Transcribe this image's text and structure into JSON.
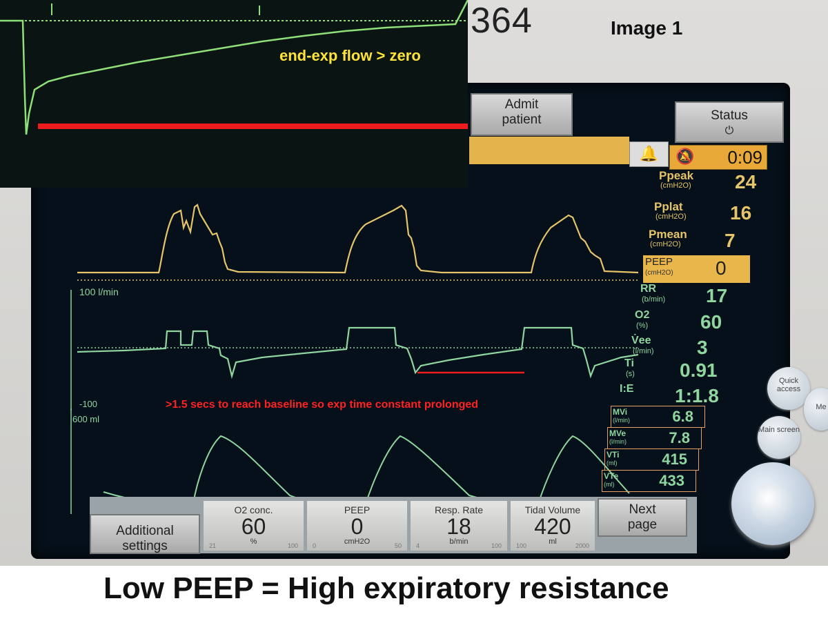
{
  "device_number": "364",
  "image_label": "Image 1",
  "inset": {
    "note": "end-exp flow > zero"
  },
  "header": {
    "admit_line1": "Admit",
    "admit_line2": "patient",
    "status_label": "Status",
    "status_icon": "plug-icon",
    "alarm_time": "0:09"
  },
  "waveforms": {
    "flow_scale_top": "100  l/min",
    "flow_scale_bottom": "-100",
    "volume_scale": "600  ml",
    "flow_note": ">1.5 secs to reach baseline so exp time constant prolonged"
  },
  "params": {
    "ppeak": {
      "name": "Ppeak",
      "unit": "(cmH2O)",
      "value": "24"
    },
    "pplat": {
      "name": "Pplat",
      "unit": "(cmH2O)",
      "value": "16"
    },
    "pmean": {
      "name": "Pmean",
      "unit": "(cmH2O)",
      "value": "7"
    },
    "peep": {
      "name": "PEEP",
      "unit": "(cmH2O)",
      "value": "0"
    },
    "rr": {
      "name": "RR",
      "unit": "(b/min)",
      "value": "17"
    },
    "o2": {
      "name": "O2",
      "unit": "(%)",
      "value": "60"
    },
    "vee": {
      "name": "V̇ee",
      "unit": "(l/min)",
      "value": "3"
    },
    "ti": {
      "name": "Ti",
      "unit": "(s)",
      "value": "0.91"
    },
    "ie": {
      "name": "I:E",
      "value": "1:1.8"
    },
    "mvi": {
      "name": "MVi",
      "unit": "(l/min)",
      "value": "6.8"
    },
    "mve": {
      "name": "MVe",
      "unit": "(l/min)",
      "value": "7.8"
    },
    "vti": {
      "name": "VTi",
      "unit": "(ml)",
      "value": "415"
    },
    "vte": {
      "name": "VTe",
      "unit": "(ml)",
      "value": "433"
    }
  },
  "bottom": {
    "additional_line1": "Additional",
    "additional_line2": "settings",
    "o2": {
      "label": "O2 conc.",
      "value": "60",
      "unit": "%",
      "scale_min": "21",
      "scale_max": "100"
    },
    "peep": {
      "label": "PEEP",
      "value": "0",
      "unit": "cmH2O",
      "scale_min": "0",
      "scale_max": "50"
    },
    "rr": {
      "label": "Resp. Rate",
      "value": "18",
      "unit": "b/min",
      "scale_min": "4",
      "scale_max": "100"
    },
    "tv": {
      "label": "Tidal Volume",
      "value": "420",
      "unit": "ml",
      "scale_min": "100",
      "scale_max": "2000"
    },
    "next_line1": "Next",
    "next_line2": "page"
  },
  "side_buttons": {
    "quick_access": "Quick access",
    "main_screen": "Main screen",
    "menu_partial": "Me"
  },
  "caption": "Low PEEP = High expiratory resistance"
}
